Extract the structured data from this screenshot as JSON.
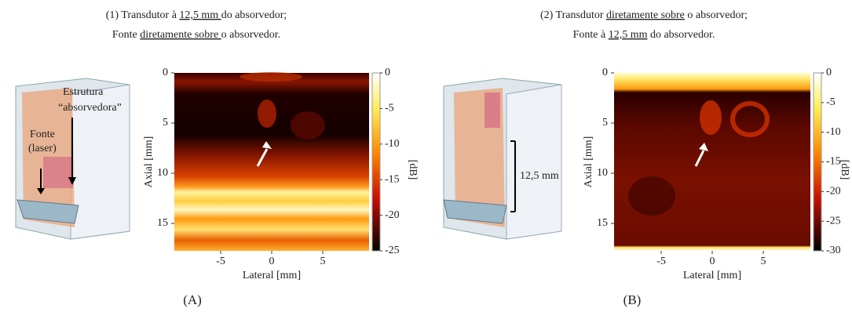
{
  "panels": [
    {
      "label": "(A)",
      "title": [
        [
          {
            "text": "(1) Transdutor à "
          },
          {
            "text": "12,5 mm ",
            "underline": true
          },
          {
            "text": "do absorvedor;"
          }
        ],
        [
          {
            "text": "Fonte "
          },
          {
            "text": "diretamente sobre ",
            "underline": true
          },
          {
            "text": "o absorvedor."
          }
        ]
      ],
      "annotations": [
        "Estrutura",
        "“absorvedora”",
        "Fonte",
        "(laser)"
      ],
      "y_label": "Axial [mm]",
      "x_label": "Lateral [mm]",
      "colorbar_label": "[dB]",
      "yticks": [
        0,
        5,
        10,
        15
      ],
      "xticks": [
        -5,
        0,
        5
      ],
      "colorbar_ticks": [
        0,
        -5,
        -10,
        -15,
        -20,
        -25
      ]
    },
    {
      "label": "(B)",
      "title": [
        [
          {
            "text": "(2) Transdutor "
          },
          {
            "text": "diretamente sobre",
            "underline": true
          },
          {
            "text": " o absorvedor;"
          }
        ],
        [
          {
            "text": "Fonte à "
          },
          {
            "text": "12,5 mm",
            "underline": true
          },
          {
            "text": " do absorvedor."
          }
        ]
      ],
      "annotations": [
        "12,5 mm"
      ],
      "y_label": "Axial [mm]",
      "x_label": "Lateral [mm]",
      "colorbar_label": "[dB]",
      "yticks": [
        0,
        5,
        10,
        15
      ],
      "xticks": [
        -5,
        0,
        5
      ],
      "colorbar_ticks": [
        0,
        -5,
        -10,
        -15,
        -20,
        -25,
        -30
      ]
    }
  ]
}
